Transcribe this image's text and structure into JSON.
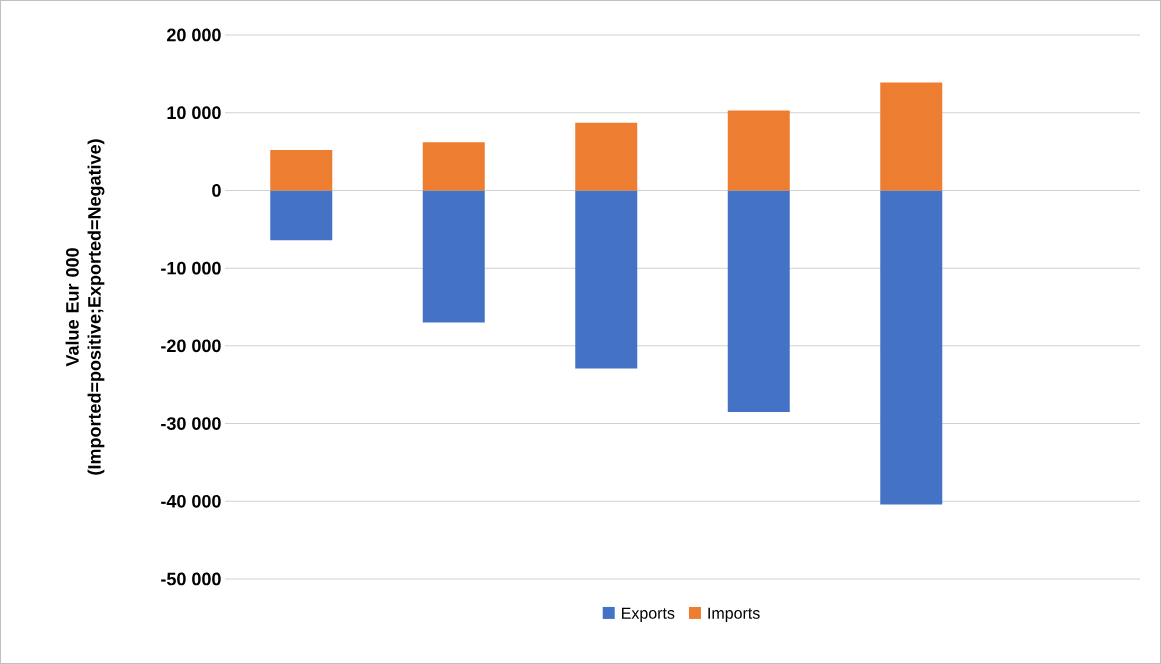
{
  "chart_data": {
    "type": "bar",
    "stacked": true,
    "ylabel": "Value Eur 000 (Imported=positive;Exported=Negative)",
    "categories": [
      null,
      null,
      null,
      null,
      null,
      null
    ],
    "series": [
      {
        "name": "Exports",
        "color": "#4472c4",
        "values": [
          -6400,
          -17000,
          -22900,
          -28500,
          -40400,
          null
        ]
      },
      {
        "name": "Imports",
        "color": "#ed7d31",
        "values": [
          5200,
          6200,
          8700,
          10300,
          13900,
          null
        ]
      }
    ],
    "ylim": [
      -50000,
      20000
    ],
    "yticks": [
      {
        "value": -50000,
        "label": "-50 000"
      },
      {
        "value": -40000,
        "label": "-40 000"
      },
      {
        "value": -30000,
        "label": "-30 000"
      },
      {
        "value": -20000,
        "label": "-20 000"
      },
      {
        "value": -10000,
        "label": "-10 000"
      },
      0,
      {
        "value": 10000,
        "label": "10 000"
      },
      {
        "value": 20000,
        "label": "20 000"
      }
    ],
    "grid": "y",
    "legend": "bottom",
    "tick_labels": "y"
  }
}
